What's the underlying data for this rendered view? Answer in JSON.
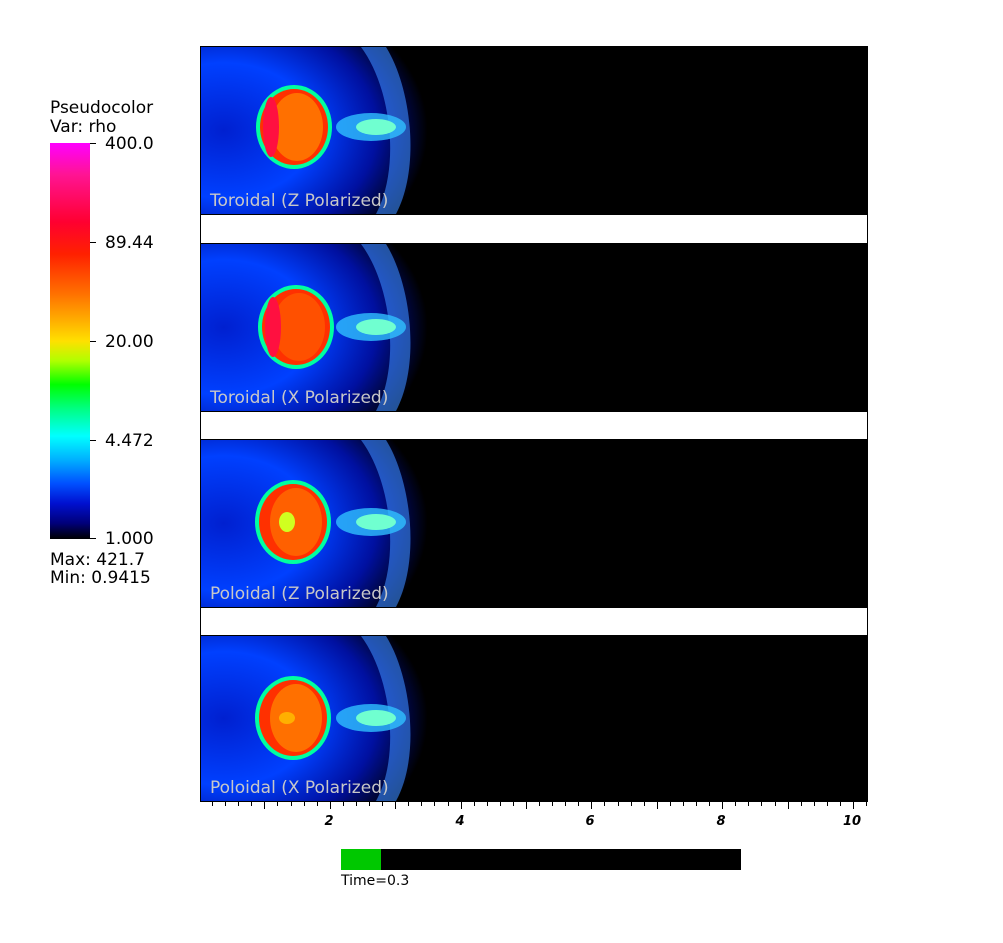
{
  "legend": {
    "title": "Pseudocolor",
    "var": "Var: rho",
    "ticks": [
      "400.0",
      "89.44",
      "20.00",
      "4.472",
      "1.000"
    ],
    "max": "Max:  421.7",
    "min": "Min:  0.9415"
  },
  "panels": [
    {
      "label": "Toroidal (Z Polarized)"
    },
    {
      "label": "Toroidal (X Polarized)"
    },
    {
      "label": "Poloidal (Z Polarized)"
    },
    {
      "label": "Poloidal (X Polarized)"
    }
  ],
  "axis": {
    "labels": [
      "2",
      "4",
      "6",
      "8",
      "10"
    ]
  },
  "time": {
    "label": "Time=0.3",
    "progress": 0.1
  }
}
